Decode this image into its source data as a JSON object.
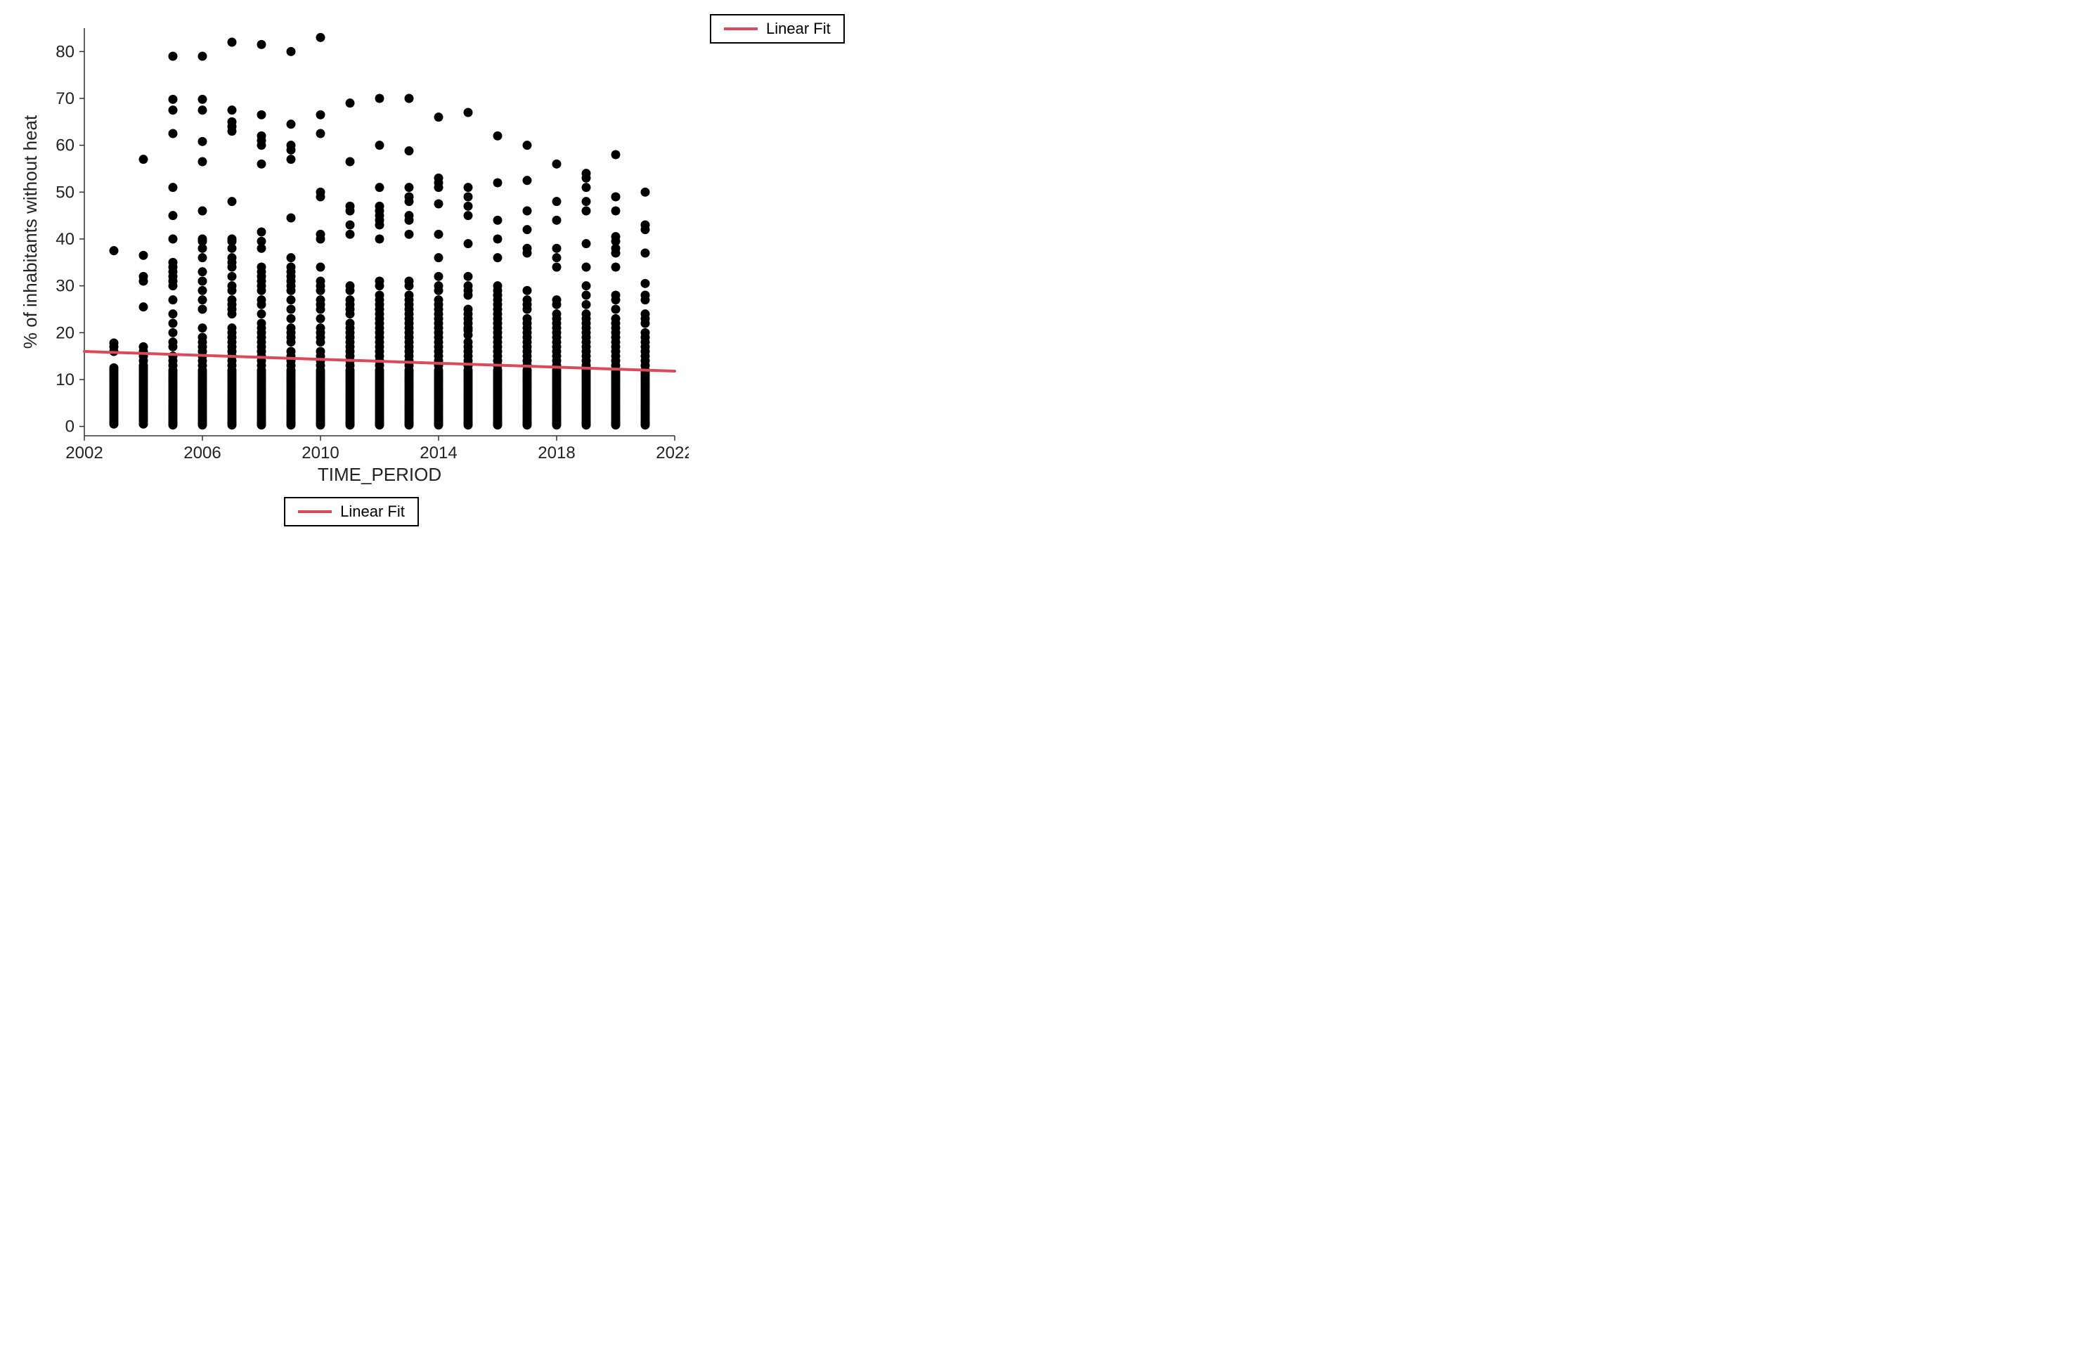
{
  "chart": {
    "type": "scatter",
    "background_color": "#ffffff",
    "plot_border_color": "#333333",
    "plot_border_width": 1.5,
    "marker": {
      "color": "#000000",
      "radius": 6.5,
      "shape": "circle",
      "opacity": 1.0
    },
    "fit_line": {
      "color": "#d94a5a",
      "width": 4,
      "y_at_xmin": 16.0,
      "y_at_xmax": 11.8
    },
    "x": {
      "label": "TIME_PERIOD",
      "label_fontsize": 26,
      "tick_fontsize": 24,
      "lim": [
        2002,
        2022
      ],
      "ticks": [
        2002,
        2006,
        2010,
        2014,
        2018,
        2022
      ]
    },
    "y": {
      "label": "% of inhabitants without heat",
      "label_fontsize": 26,
      "tick_fontsize": 24,
      "lim": [
        -2,
        85
      ],
      "ticks": [
        0,
        10,
        20,
        30,
        40,
        50,
        60,
        70,
        80
      ]
    },
    "legend": {
      "label": "Linear Fit",
      "line_color": "#d94a5a",
      "border_color": "#000000",
      "border_width": 2,
      "fontsize": 22
    },
    "data": {
      "2003": [
        0.5,
        1,
        1.5,
        2,
        2.5,
        3,
        3.5,
        4,
        4.5,
        5,
        5.5,
        6,
        6.5,
        7,
        7.5,
        8,
        8.5,
        9,
        9.5,
        10,
        10.5,
        11,
        11.5,
        12,
        12.5,
        16,
        17,
        17.8,
        37.5
      ],
      "2004": [
        0.5,
        1,
        1.5,
        2,
        2.5,
        3,
        3.5,
        4,
        4.5,
        5,
        5.5,
        6,
        6.5,
        7,
        7.5,
        8,
        8.5,
        9,
        9.5,
        10,
        10.5,
        11,
        11.5,
        12,
        12.5,
        13,
        14,
        15,
        16,
        17,
        25.5,
        31,
        32,
        36.5,
        57
      ],
      "2005": [
        0.3,
        0.7,
        1,
        1.5,
        2,
        2.5,
        3,
        3.5,
        4,
        4.5,
        5,
        5.5,
        6,
        6.5,
        7,
        7.5,
        8,
        8.5,
        9,
        9.5,
        10,
        10.5,
        11,
        11.5,
        12,
        13,
        14,
        15,
        17,
        18,
        20,
        22,
        24,
        27,
        30,
        31,
        32,
        33,
        34,
        35,
        40,
        45,
        51,
        62.5,
        67.5,
        69.8,
        79
      ],
      "2006": [
        0.3,
        0.7,
        1,
        1.5,
        2,
        2.5,
        3,
        3.5,
        4,
        4.5,
        5,
        5.5,
        6,
        6.5,
        7,
        7.5,
        8,
        8.5,
        9,
        9.5,
        10,
        10.5,
        11,
        11.5,
        12,
        13,
        14,
        15,
        16,
        17,
        18,
        19,
        21,
        25,
        27,
        29,
        31,
        33,
        36,
        38,
        39.5,
        40,
        46,
        56.5,
        60.8,
        67.5,
        69.8,
        79
      ],
      "2007": [
        0.3,
        0.7,
        1,
        1.5,
        2,
        2.5,
        3,
        3.5,
        4,
        4.5,
        5,
        5.5,
        6,
        6.5,
        7,
        7.5,
        8,
        8.5,
        9,
        9.5,
        10,
        10.5,
        11,
        11.5,
        12,
        13,
        14,
        15,
        16,
        17,
        18,
        19,
        20,
        21,
        24,
        25,
        26,
        27,
        29,
        30,
        32,
        34,
        35,
        36,
        38,
        39.5,
        40,
        48,
        63,
        64,
        65,
        67.5,
        82
      ],
      "2008": [
        0.3,
        0.7,
        1,
        1.5,
        2,
        2.5,
        3,
        3.5,
        4,
        4.5,
        5,
        5.5,
        6,
        6.5,
        7,
        7.5,
        8,
        8.5,
        9,
        9.5,
        10,
        10.5,
        11,
        11.5,
        12,
        13,
        14,
        15,
        16,
        17,
        18,
        19,
        20,
        21,
        22,
        24,
        26,
        27,
        29,
        30,
        31,
        32,
        33,
        34,
        38,
        39.5,
        41.5,
        56,
        60,
        61,
        62,
        66.5,
        81.5
      ],
      "2009": [
        0.3,
        0.7,
        1,
        1.5,
        2,
        2.5,
        3,
        3.5,
        4,
        4.5,
        5,
        5.5,
        6,
        6.5,
        7,
        7.5,
        8,
        8.5,
        9,
        9.5,
        10,
        10.5,
        11,
        11.5,
        12,
        13,
        14,
        15,
        16,
        18,
        19,
        20,
        21,
        23,
        25,
        27,
        29,
        30,
        31,
        32,
        33,
        34,
        36,
        44.5,
        57,
        59,
        60,
        64.5,
        80
      ],
      "2010": [
        0.3,
        0.7,
        1,
        1.5,
        2,
        2.5,
        3,
        3.5,
        4,
        4.5,
        5,
        5.5,
        6,
        6.5,
        7,
        7.5,
        8,
        8.5,
        9,
        9.5,
        10,
        10.5,
        11,
        11.5,
        12,
        13,
        14,
        15,
        16,
        18,
        19,
        20,
        21,
        23,
        25,
        26,
        27,
        29,
        30,
        31,
        34,
        40,
        41,
        49,
        50,
        62.5,
        66.5,
        83
      ],
      "2011": [
        0.3,
        0.7,
        1,
        1.5,
        2,
        2.5,
        3,
        3.5,
        4,
        4.5,
        5,
        5.5,
        6,
        6.5,
        7,
        7.5,
        8,
        8.5,
        9,
        9.5,
        10,
        10.5,
        11,
        11.5,
        12,
        13,
        14,
        15,
        16,
        17,
        18,
        19,
        20,
        21,
        22,
        24,
        25,
        26,
        27,
        29,
        30,
        41,
        43,
        46,
        47,
        56.5,
        69
      ],
      "2012": [
        0.3,
        0.7,
        1,
        1.5,
        2,
        2.5,
        3,
        3.5,
        4,
        4.5,
        5,
        5.5,
        6,
        6.5,
        7,
        7.5,
        8,
        8.5,
        9,
        9.5,
        10,
        10.5,
        11,
        11.5,
        12,
        13,
        14,
        15,
        16,
        17,
        18,
        19,
        20,
        21,
        22,
        23,
        24,
        25,
        26,
        27,
        28,
        30,
        31,
        40,
        43,
        44,
        45,
        46,
        47,
        51,
        60,
        70
      ],
      "2013": [
        0.3,
        0.7,
        1,
        1.5,
        2,
        2.5,
        3,
        3.5,
        4,
        4.5,
        5,
        5.5,
        6,
        6.5,
        7,
        7.5,
        8,
        8.5,
        9,
        9.5,
        10,
        10.5,
        11,
        11.5,
        12,
        13,
        14,
        15,
        16,
        17,
        18,
        19,
        20,
        21,
        22,
        23,
        24,
        25,
        26,
        27,
        28,
        30,
        31,
        41,
        44,
        45,
        48,
        49,
        51,
        58.8,
        70
      ],
      "2014": [
        0.3,
        0.7,
        1,
        1.5,
        2,
        2.5,
        3,
        3.5,
        4,
        4.5,
        5,
        5.5,
        6,
        6.5,
        7,
        7.5,
        8,
        8.5,
        9,
        9.5,
        10,
        10.5,
        11,
        11.5,
        12,
        13,
        14,
        15,
        16,
        17,
        18,
        19,
        20,
        21,
        22,
        23,
        24,
        25,
        26,
        27,
        29,
        30,
        32,
        36,
        41,
        47.5,
        51,
        52,
        53,
        66
      ],
      "2015": [
        0.3,
        0.7,
        1,
        1.5,
        2,
        2.5,
        3,
        3.5,
        4,
        4.5,
        5,
        5.5,
        6,
        6.5,
        7,
        7.5,
        8,
        8.5,
        9,
        9.5,
        10,
        10.5,
        11,
        11.5,
        12,
        13,
        14,
        15,
        16,
        17,
        18,
        19.5,
        20.5,
        21,
        22,
        23,
        24,
        25,
        28,
        29,
        30,
        32,
        39,
        45,
        47,
        49,
        51,
        67
      ],
      "2016": [
        0.3,
        0.7,
        1,
        1.5,
        2,
        2.5,
        3,
        3.5,
        4,
        4.5,
        5,
        5.5,
        6,
        6.5,
        7,
        7.5,
        8,
        8.5,
        9,
        9.5,
        10,
        10.5,
        11,
        11.5,
        12,
        13,
        14,
        15,
        16,
        17,
        18,
        19,
        20,
        21,
        22,
        23,
        24,
        25,
        26,
        27,
        28,
        29,
        30,
        36,
        40,
        44,
        52,
        62
      ],
      "2017": [
        0.3,
        0.7,
        1,
        1.5,
        2,
        2.5,
        3,
        3.5,
        4,
        4.5,
        5,
        5.5,
        6,
        6.5,
        7,
        7.5,
        8,
        8.5,
        9,
        9.5,
        10,
        10.5,
        11,
        11.5,
        12,
        13,
        14,
        15,
        16,
        17,
        18,
        19,
        20,
        21,
        22,
        23,
        25,
        26,
        27,
        29,
        37,
        38,
        42,
        46,
        52.5,
        60
      ],
      "2018": [
        0.3,
        0.7,
        1,
        1.5,
        2,
        2.5,
        3,
        3.5,
        4,
        4.5,
        5,
        5.5,
        6,
        6.5,
        7,
        7.5,
        8,
        8.5,
        9,
        9.5,
        10,
        10.5,
        11,
        11.5,
        12,
        13,
        14,
        15,
        16,
        17,
        18,
        19,
        20,
        21,
        22,
        23,
        24,
        26,
        27,
        34,
        36,
        38,
        44,
        48,
        56
      ],
      "2019": [
        0.3,
        0.7,
        1,
        1.5,
        2,
        2.5,
        3,
        3.5,
        4,
        4.5,
        5,
        5.5,
        6,
        6.5,
        7,
        7.5,
        8,
        8.5,
        9,
        9.5,
        10,
        10.5,
        11,
        11.5,
        12,
        13,
        14,
        15,
        16,
        17,
        18,
        19,
        20,
        21,
        22,
        23,
        24,
        26,
        28,
        30,
        34,
        39,
        46,
        48,
        51,
        53,
        54
      ],
      "2020": [
        0.3,
        0.7,
        1,
        1.5,
        2,
        2.5,
        3,
        3.5,
        4,
        4.5,
        5,
        5.5,
        6,
        6.5,
        7,
        7.5,
        8,
        8.5,
        9,
        9.5,
        10,
        10.5,
        11,
        11.5,
        12,
        13,
        14,
        15,
        16,
        17,
        18,
        19,
        20,
        21,
        22,
        23,
        25,
        27,
        28,
        34,
        37,
        38,
        39.5,
        40.5,
        46,
        49,
        58
      ],
      "2021": [
        0.3,
        0.7,
        1,
        1.5,
        2,
        2.5,
        3,
        3.5,
        4,
        4.5,
        5,
        5.5,
        6,
        6.5,
        7,
        7.5,
        8,
        8.5,
        9,
        9.5,
        10,
        10.5,
        11,
        11.5,
        12,
        13,
        14,
        15,
        16,
        17,
        18,
        19,
        20,
        22,
        23,
        24,
        27,
        28,
        30.5,
        37,
        42,
        43,
        50
      ]
    }
  }
}
